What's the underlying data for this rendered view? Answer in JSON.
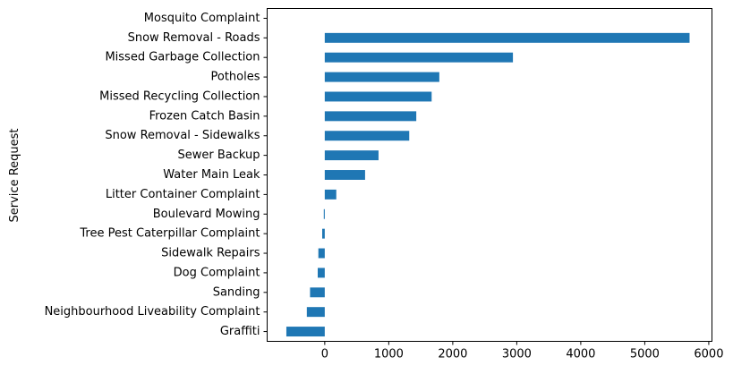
{
  "chart_data": {
    "type": "bar",
    "orientation": "horizontal",
    "ylabel": "Service Request",
    "xlabel": "",
    "title": "",
    "xlim": [
      -900,
      6050
    ],
    "xticks": [
      0,
      1000,
      2000,
      3000,
      4000,
      5000,
      6000
    ],
    "grid": false,
    "legend": "none",
    "bar_color": "#1f77b4",
    "categories": [
      "Mosquito Complaint",
      "Snow Removal - Roads",
      "Missed Garbage Collection",
      "Potholes",
      "Missed Recycling Collection",
      "Frozen Catch Basin",
      "Snow Removal - Sidewalks",
      "Sewer Backup",
      "Water Main Leak",
      "Litter Container Complaint",
      "Boulevard Mowing",
      "Tree Pest Caterpillar Complaint",
      "Sidewalk Repairs",
      "Dog Complaint",
      "Sanding",
      "Neighbourhood Liveability Complaint",
      "Graffiti"
    ],
    "values": [
      0,
      5700,
      2940,
      1790,
      1670,
      1430,
      1320,
      840,
      630,
      180,
      -15,
      -40,
      -100,
      -110,
      -230,
      -280,
      -600
    ]
  }
}
